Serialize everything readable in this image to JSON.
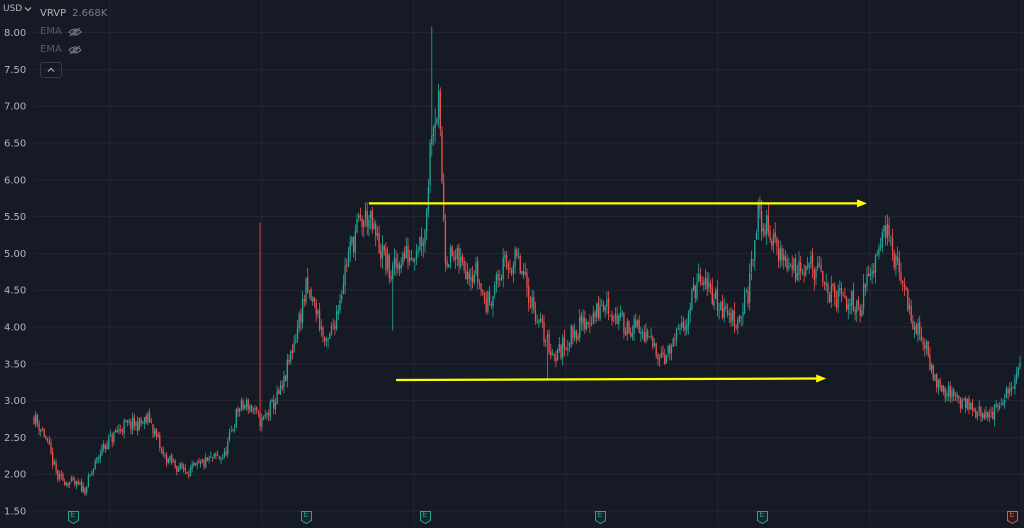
{
  "currency": {
    "label": "USD",
    "icon": "chevron-down-icon"
  },
  "legend": {
    "vrvp_label": "VRVP",
    "vrvp_value": "2.668K",
    "ema1_label": "EMA",
    "ema2_label": "EMA",
    "visibility_icon": "eye-off-icon",
    "collapse_icon": "chevron-up-icon"
  },
  "colors": {
    "background": "#161a25",
    "grid": "#232733",
    "up": "#26a69a",
    "down": "#ef5350",
    "annotation": "#ffff00",
    "axis_text": "#b2b5be"
  },
  "earnings_markers": [
    {
      "label": "E",
      "status": "reported"
    },
    {
      "label": "E",
      "status": "reported"
    },
    {
      "label": "E",
      "status": "reported"
    },
    {
      "label": "E",
      "status": "reported"
    },
    {
      "label": "E",
      "status": "reported"
    },
    {
      "label": "E",
      "status": "upcoming"
    }
  ],
  "chart_data": {
    "type": "candlestick",
    "y_axis": {
      "position": "left",
      "ticks": [
        "8.00",
        "7.50",
        "7.00",
        "6.50",
        "6.00",
        "5.50",
        "5.00",
        "4.50",
        "4.00",
        "3.50",
        "3.00",
        "2.50",
        "2.00",
        "1.50"
      ],
      "range": [
        1.45,
        8.2
      ]
    },
    "grid": true,
    "close_path": [
      [
        0,
        2.78
      ],
      [
        6,
        2.55
      ],
      [
        14,
        1.95
      ],
      [
        22,
        1.88
      ],
      [
        30,
        1.8
      ],
      [
        40,
        2.35
      ],
      [
        52,
        2.65
      ],
      [
        62,
        2.68
      ],
      [
        68,
        2.75
      ],
      [
        76,
        2.25
      ],
      [
        84,
        2.1
      ],
      [
        92,
        2.05
      ],
      [
        104,
        2.2
      ],
      [
        112,
        2.25
      ],
      [
        120,
        2.88
      ],
      [
        126,
        2.95
      ],
      [
        134,
        2.7
      ],
      [
        146,
        3.15
      ],
      [
        154,
        3.9
      ],
      [
        160,
        4.5
      ],
      [
        166,
        4.25
      ],
      [
        172,
        3.7
      ],
      [
        178,
        4.2
      ],
      [
        184,
        4.9
      ],
      [
        190,
        5.35
      ],
      [
        196,
        5.5
      ],
      [
        204,
        5.05
      ],
      [
        210,
        4.7
      ],
      [
        216,
        4.95
      ],
      [
        222,
        5.0
      ],
      [
        230,
        5.3
      ],
      [
        234,
        6.8
      ],
      [
        238,
        7.0
      ],
      [
        242,
        5.0
      ],
      [
        252,
        4.85
      ],
      [
        260,
        4.75
      ],
      [
        266,
        4.3
      ],
      [
        276,
        4.8
      ],
      [
        284,
        4.9
      ],
      [
        292,
        4.4
      ],
      [
        298,
        4.0
      ],
      [
        306,
        3.6
      ],
      [
        310,
        3.7
      ],
      [
        318,
        3.95
      ],
      [
        326,
        4.1
      ],
      [
        336,
        4.3
      ],
      [
        346,
        4.05
      ],
      [
        356,
        3.95
      ],
      [
        364,
        3.75
      ],
      [
        372,
        3.6
      ],
      [
        382,
        4.0
      ],
      [
        390,
        4.6
      ],
      [
        398,
        4.5
      ],
      [
        406,
        4.2
      ],
      [
        414,
        4.1
      ],
      [
        420,
        4.45
      ],
      [
        426,
        5.5
      ],
      [
        432,
        5.3
      ],
      [
        440,
        4.95
      ],
      [
        446,
        4.8
      ],
      [
        454,
        4.9
      ],
      [
        462,
        4.7
      ],
      [
        470,
        4.4
      ],
      [
        478,
        4.35
      ],
      [
        486,
        4.3
      ],
      [
        494,
        4.9
      ],
      [
        500,
        5.45
      ],
      [
        506,
        4.9
      ],
      [
        512,
        4.5
      ],
      [
        518,
        4.0
      ],
      [
        524,
        3.75
      ],
      [
        530,
        3.3
      ],
      [
        538,
        3.1
      ],
      [
        546,
        3.0
      ],
      [
        554,
        2.85
      ],
      [
        562,
        2.8
      ],
      [
        570,
        2.95
      ],
      [
        580,
        3.45
      ]
    ],
    "annotations": [
      {
        "type": "arrow",
        "color": "#ffff00",
        "from": [
          197,
          5.68
        ],
        "to": [
          490,
          5.68
        ]
      },
      {
        "type": "arrow",
        "color": "#ffff00",
        "from": [
          213,
          3.28
        ],
        "to": [
          466,
          3.3
        ]
      }
    ]
  }
}
